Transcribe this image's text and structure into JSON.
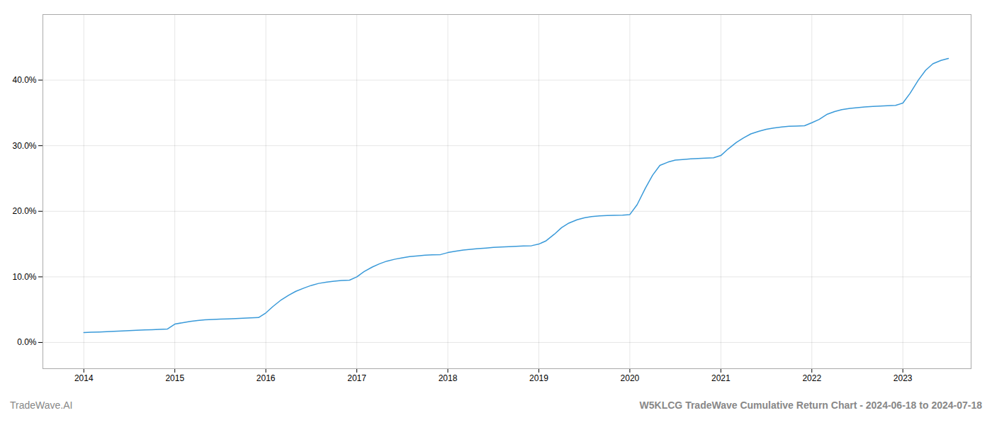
{
  "chart_data": {
    "type": "line",
    "title": "W5KLCG TradeWave Cumulative Return Chart - 2024-06-18 to 2024-07-18",
    "annotations": [
      "TradeWave.AI"
    ],
    "color": "#3a9ad9",
    "x": [
      2014.0,
      2014.08,
      2014.17,
      2014.25,
      2014.33,
      2014.42,
      2014.5,
      2014.58,
      2014.67,
      2014.75,
      2014.83,
      2014.92,
      2015.0,
      2015.08,
      2015.17,
      2015.25,
      2015.33,
      2015.42,
      2015.5,
      2015.58,
      2015.67,
      2015.75,
      2015.83,
      2015.92,
      2016.0,
      2016.08,
      2016.17,
      2016.25,
      2016.33,
      2016.42,
      2016.5,
      2016.58,
      2016.67,
      2016.75,
      2016.83,
      2016.92,
      2017.0,
      2017.08,
      2017.17,
      2017.25,
      2017.33,
      2017.42,
      2017.5,
      2017.58,
      2017.67,
      2017.75,
      2017.83,
      2017.92,
      2018.0,
      2018.08,
      2018.17,
      2018.25,
      2018.33,
      2018.42,
      2018.5,
      2018.58,
      2018.67,
      2018.75,
      2018.83,
      2018.92,
      2019.0,
      2019.08,
      2019.17,
      2019.25,
      2019.33,
      2019.42,
      2019.5,
      2019.58,
      2019.67,
      2019.75,
      2019.83,
      2019.92,
      2020.0,
      2020.08,
      2020.17,
      2020.25,
      2020.33,
      2020.42,
      2020.5,
      2020.58,
      2020.67,
      2020.75,
      2020.83,
      2020.92,
      2021.0,
      2021.08,
      2021.17,
      2021.25,
      2021.33,
      2021.42,
      2021.5,
      2021.58,
      2021.67,
      2021.75,
      2021.83,
      2021.92,
      2022.0,
      2022.08,
      2022.17,
      2022.25,
      2022.33,
      2022.42,
      2022.5,
      2022.58,
      2022.67,
      2022.75,
      2022.83,
      2022.92,
      2023.0,
      2023.08,
      2023.17,
      2023.25,
      2023.33,
      2023.42,
      2023.5
    ],
    "values": [
      1.5,
      1.55,
      1.6,
      1.65,
      1.7,
      1.75,
      1.8,
      1.85,
      1.9,
      1.95,
      2.0,
      2.05,
      2.8,
      3.0,
      3.2,
      3.35,
      3.45,
      3.5,
      3.55,
      3.6,
      3.65,
      3.7,
      3.75,
      3.8,
      4.5,
      5.5,
      6.5,
      7.2,
      7.8,
      8.3,
      8.7,
      9.0,
      9.2,
      9.35,
      9.45,
      9.5,
      10.0,
      10.8,
      11.5,
      12.0,
      12.4,
      12.7,
      12.9,
      13.1,
      13.2,
      13.3,
      13.35,
      13.4,
      13.7,
      13.9,
      14.1,
      14.2,
      14.3,
      14.4,
      14.5,
      14.55,
      14.6,
      14.65,
      14.7,
      14.75,
      15.0,
      15.5,
      16.5,
      17.5,
      18.2,
      18.7,
      19.0,
      19.2,
      19.3,
      19.35,
      19.38,
      19.4,
      19.5,
      21.0,
      23.5,
      25.5,
      27.0,
      27.5,
      27.8,
      27.9,
      28.0,
      28.05,
      28.1,
      28.15,
      28.5,
      29.5,
      30.5,
      31.2,
      31.8,
      32.2,
      32.5,
      32.7,
      32.85,
      32.95,
      33.0,
      33.05,
      33.5,
      34.0,
      34.8,
      35.2,
      35.5,
      35.7,
      35.8,
      35.9,
      36.0,
      36.05,
      36.1,
      36.15,
      36.5,
      38.0,
      40.0,
      41.5,
      42.5,
      43.0,
      43.3
    ],
    "xlim": [
      2013.55,
      2023.75
    ],
    "xticks": [
      2014,
      2015,
      2016,
      2017,
      2018,
      2019,
      2020,
      2021,
      2022,
      2023
    ],
    "ylim": [
      -4,
      50
    ],
    "yticks": [
      {
        "value": 0.0,
        "label": "0.0%"
      },
      {
        "value": 10.0,
        "label": "10.0%"
      },
      {
        "value": 20.0,
        "label": "20.0%"
      },
      {
        "value": 30.0,
        "label": "30.0%"
      },
      {
        "value": 40.0,
        "label": "40.0%"
      }
    ],
    "grid": true
  }
}
